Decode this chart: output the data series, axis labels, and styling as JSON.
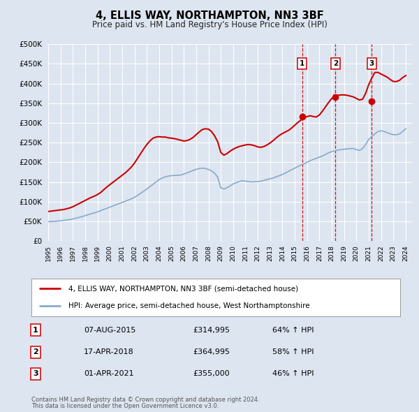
{
  "title": "4, ELLIS WAY, NORTHAMPTON, NN3 3BF",
  "subtitle": "Price paid vs. HM Land Registry's House Price Index (HPI)",
  "ylim": [
    0,
    500000
  ],
  "yticks": [
    0,
    50000,
    100000,
    150000,
    200000,
    250000,
    300000,
    350000,
    400000,
    450000,
    500000
  ],
  "xlim_start": 1995.0,
  "xlim_end": 2024.5,
  "background_color": "#dde5f0",
  "plot_bg_color": "#dde5f0",
  "grid_color": "#ffffff",
  "red_line_color": "#cc0000",
  "blue_line_color": "#88aacc",
  "sale_marker_color": "#cc0000",
  "vline_color": "#cc0000",
  "legend_label_red": "4, ELLIS WAY, NORTHAMPTON, NN3 3BF (semi-detached house)",
  "legend_label_blue": "HPI: Average price, semi-detached house, West Northamptonshire",
  "transactions": [
    {
      "num": 1,
      "date": "07-AUG-2015",
      "year": 2015.6,
      "price": 314995,
      "pct": "64% ↑ HPI"
    },
    {
      "num": 2,
      "date": "17-APR-2018",
      "year": 2018.3,
      "price": 364995,
      "pct": "58% ↑ HPI"
    },
    {
      "num": 3,
      "date": "01-APR-2021",
      "year": 2021.25,
      "price": 355000,
      "pct": "46% ↑ HPI"
    }
  ],
  "footer_line1": "Contains HM Land Registry data © Crown copyright and database right 2024.",
  "footer_line2": "This data is licensed under the Open Government Licence v3.0.",
  "hpi_years": [
    1995.0,
    1995.25,
    1995.5,
    1995.75,
    1996.0,
    1996.25,
    1996.5,
    1996.75,
    1997.0,
    1997.25,
    1997.5,
    1997.75,
    1998.0,
    1998.25,
    1998.5,
    1998.75,
    1999.0,
    1999.25,
    1999.5,
    1999.75,
    2000.0,
    2000.25,
    2000.5,
    2000.75,
    2001.0,
    2001.25,
    2001.5,
    2001.75,
    2002.0,
    2002.25,
    2002.5,
    2002.75,
    2003.0,
    2003.25,
    2003.5,
    2003.75,
    2004.0,
    2004.25,
    2004.5,
    2004.75,
    2005.0,
    2005.25,
    2005.5,
    2005.75,
    2006.0,
    2006.25,
    2006.5,
    2006.75,
    2007.0,
    2007.25,
    2007.5,
    2007.75,
    2008.0,
    2008.25,
    2008.5,
    2008.75,
    2009.0,
    2009.25,
    2009.5,
    2009.75,
    2010.0,
    2010.25,
    2010.5,
    2010.75,
    2011.0,
    2011.25,
    2011.5,
    2011.75,
    2012.0,
    2012.25,
    2012.5,
    2012.75,
    2013.0,
    2013.25,
    2013.5,
    2013.75,
    2014.0,
    2014.25,
    2014.5,
    2014.75,
    2015.0,
    2015.25,
    2015.5,
    2015.75,
    2016.0,
    2016.25,
    2016.5,
    2016.75,
    2017.0,
    2017.25,
    2017.5,
    2017.75,
    2018.0,
    2018.25,
    2018.5,
    2018.75,
    2019.0,
    2019.25,
    2019.5,
    2019.75,
    2020.0,
    2020.25,
    2020.5,
    2020.75,
    2021.0,
    2021.25,
    2021.5,
    2021.75,
    2022.0,
    2022.25,
    2022.5,
    2022.75,
    2023.0,
    2023.25,
    2023.5,
    2023.75,
    2024.0
  ],
  "hpi_values": [
    49000,
    49500,
    50000,
    50500,
    51500,
    52500,
    53500,
    54500,
    56000,
    58000,
    60000,
    62000,
    64500,
    67000,
    69500,
    71500,
    74000,
    77000,
    80000,
    83000,
    86000,
    89000,
    92000,
    95000,
    98000,
    101000,
    104000,
    107000,
    111000,
    116000,
    121000,
    126500,
    132000,
    138000,
    144000,
    150000,
    156000,
    160000,
    163000,
    165000,
    166000,
    166500,
    167000,
    167500,
    170000,
    173000,
    176000,
    179000,
    182000,
    184000,
    185000,
    184000,
    182000,
    178000,
    172000,
    162000,
    135000,
    132000,
    135000,
    140000,
    145000,
    148000,
    151000,
    153000,
    152000,
    151000,
    150000,
    150500,
    151000,
    152000,
    154000,
    156000,
    158000,
    160000,
    163000,
    166000,
    169000,
    173000,
    177000,
    181000,
    185000,
    189000,
    193000,
    196000,
    200000,
    204000,
    207000,
    210000,
    213000,
    216000,
    220000,
    224000,
    227000,
    229000,
    231000,
    232000,
    233000,
    234000,
    234500,
    235000,
    232000,
    230000,
    235000,
    245000,
    258000,
    265000,
    272000,
    278000,
    280000,
    278000,
    275000,
    272000,
    270000,
    270000,
    272000,
    278000,
    285000
  ],
  "price_years": [
    1995.0,
    1995.25,
    1995.5,
    1995.75,
    1996.0,
    1996.25,
    1996.5,
    1996.75,
    1997.0,
    1997.25,
    1997.5,
    1997.75,
    1998.0,
    1998.25,
    1998.5,
    1998.75,
    1999.0,
    1999.25,
    1999.5,
    1999.75,
    2000.0,
    2000.25,
    2000.5,
    2000.75,
    2001.0,
    2001.25,
    2001.5,
    2001.75,
    2002.0,
    2002.25,
    2002.5,
    2002.75,
    2003.0,
    2003.25,
    2003.5,
    2003.75,
    2004.0,
    2004.25,
    2004.5,
    2004.75,
    2005.0,
    2005.25,
    2005.5,
    2005.75,
    2006.0,
    2006.25,
    2006.5,
    2006.75,
    2007.0,
    2007.25,
    2007.5,
    2007.75,
    2008.0,
    2008.25,
    2008.5,
    2008.75,
    2009.0,
    2009.25,
    2009.5,
    2009.75,
    2010.0,
    2010.25,
    2010.5,
    2010.75,
    2011.0,
    2011.25,
    2011.5,
    2011.75,
    2012.0,
    2012.25,
    2012.5,
    2012.75,
    2013.0,
    2013.25,
    2013.5,
    2013.75,
    2014.0,
    2014.25,
    2014.5,
    2014.75,
    2015.0,
    2015.25,
    2015.5,
    2015.75,
    2016.0,
    2016.25,
    2016.5,
    2016.75,
    2017.0,
    2017.25,
    2017.5,
    2017.75,
    2018.0,
    2018.25,
    2018.5,
    2018.75,
    2019.0,
    2019.25,
    2019.5,
    2019.75,
    2020.0,
    2020.25,
    2020.5,
    2020.75,
    2021.0,
    2021.25,
    2021.5,
    2021.75,
    2022.0,
    2022.25,
    2022.5,
    2022.75,
    2023.0,
    2023.25,
    2023.5,
    2023.75,
    2024.0
  ],
  "price_values": [
    75000,
    76000,
    77000,
    78000,
    79000,
    80000,
    82000,
    84000,
    87000,
    91000,
    95000,
    99000,
    103000,
    107000,
    111000,
    114000,
    118000,
    123000,
    130000,
    137000,
    143000,
    149000,
    155000,
    161000,
    167000,
    173000,
    180000,
    188000,
    198000,
    210000,
    222000,
    234000,
    245000,
    254000,
    261000,
    264000,
    265000,
    264000,
    264000,
    262000,
    261000,
    260000,
    258000,
    256000,
    254000,
    255000,
    258000,
    263000,
    270000,
    277000,
    283000,
    285000,
    284000,
    278000,
    267000,
    252000,
    225000,
    218000,
    222000,
    228000,
    233000,
    237000,
    240000,
    242000,
    244000,
    245000,
    244000,
    242000,
    239000,
    238000,
    240000,
    244000,
    249000,
    255000,
    262000,
    268000,
    273000,
    277000,
    281000,
    287000,
    294000,
    301000,
    307000,
    312000,
    316000,
    318000,
    316000,
    315000,
    320000,
    330000,
    341000,
    352000,
    362000,
    367000,
    370000,
    371000,
    371000,
    370000,
    368000,
    366000,
    362000,
    358000,
    360000,
    375000,
    397000,
    414000,
    428000,
    428000,
    424000,
    420000,
    416000,
    410000,
    405000,
    405000,
    408000,
    415000,
    420000
  ]
}
